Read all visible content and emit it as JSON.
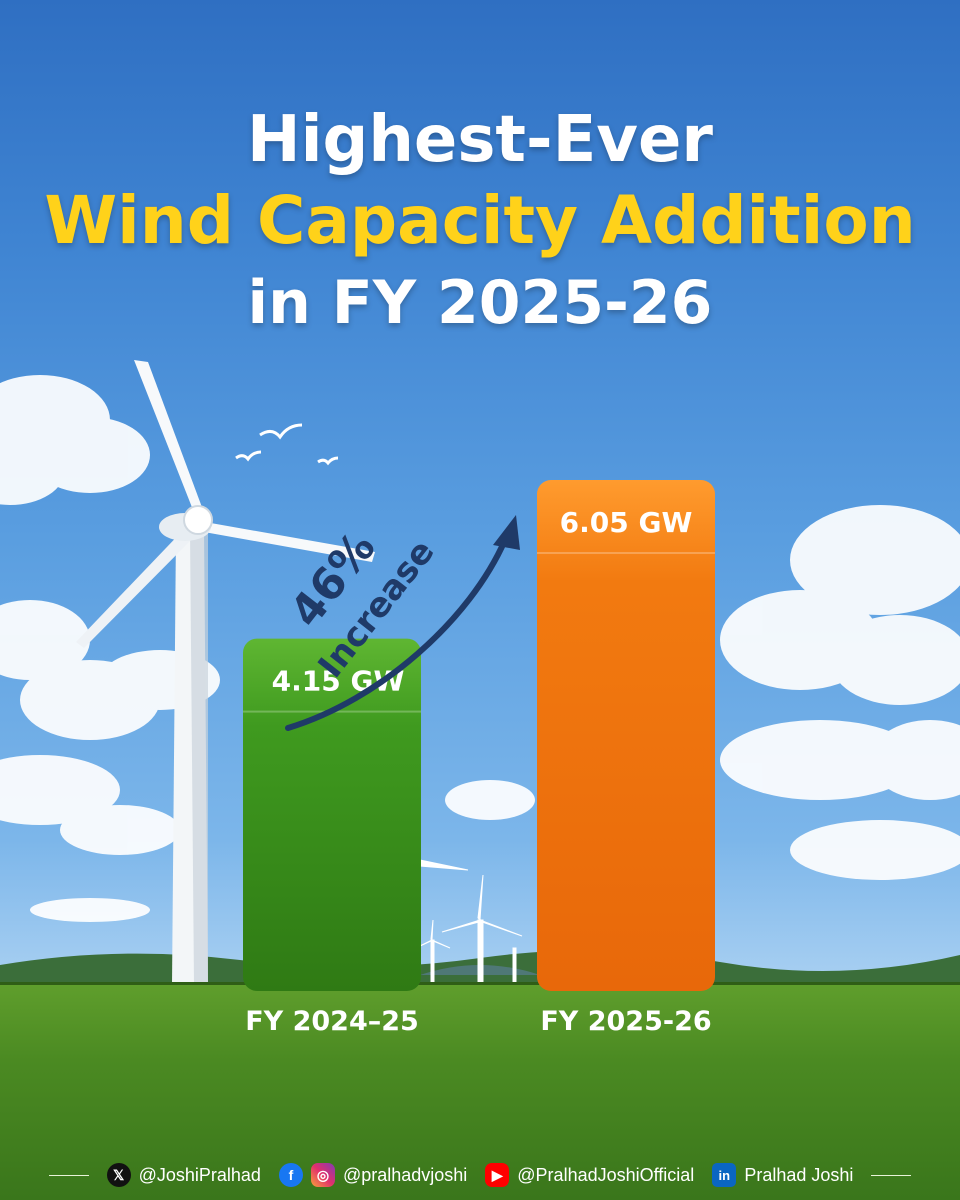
{
  "title": {
    "line1": "Highest-Ever",
    "line2": "Wind Capacity Addition",
    "line3": "in FY 2025-26"
  },
  "annotation": {
    "percent": "46%",
    "word": "Increase"
  },
  "colors": {
    "bar_fy2425": "#3f9a1f",
    "bar_fy2526": "#f27a10",
    "title_accent": "#ffd21a",
    "arrow": "#1f3a68"
  },
  "chart_data": {
    "type": "bar",
    "categories": [
      "FY 2024–25",
      "FY 2025-26"
    ],
    "values": [
      4.15,
      6.05
    ],
    "value_labels": [
      "4.15 GW",
      "6.05 GW"
    ],
    "unit": "GW",
    "title": "Highest-Ever Wind Capacity Addition in FY 2025-26",
    "xlabel": "",
    "ylabel": "",
    "ylim": [
      0,
      6.05
    ],
    "grid": false,
    "legend": "none"
  },
  "footer": {
    "x_handle": "@JoshiPralhad",
    "fb_ig_handle": "@pralhadvjoshi",
    "youtube_handle": "@PralhadJoshiOfficial",
    "linkedin_name": "Pralhad Joshi",
    "icons": [
      "x-icon",
      "facebook-icon",
      "instagram-icon",
      "youtube-icon",
      "linkedin-icon"
    ]
  }
}
